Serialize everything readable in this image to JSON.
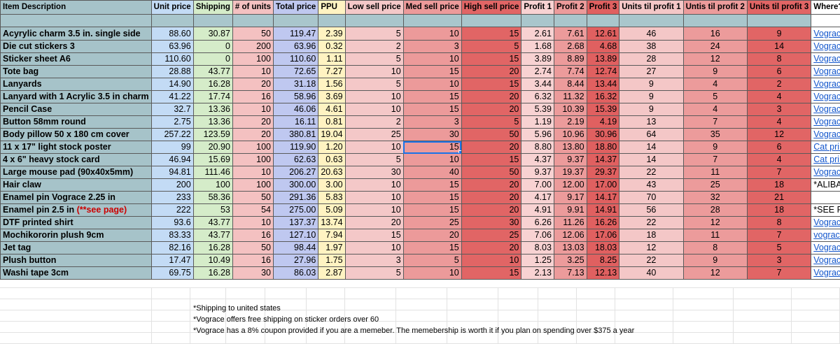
{
  "headers": [
    "Item Description",
    "Unit price",
    "Shipping",
    "# of units",
    "Total price",
    "PPU",
    "Low sell price",
    "Med sell price",
    "High sell price",
    "Profit 1",
    "Profit 2",
    "Profit 3",
    "Units til profit 1",
    "Untis til profit 2",
    "Units til profit 3",
    "Where?"
  ],
  "rows": [
    [
      "Acyrylic charm 3.5 in. single side",
      "88.60",
      "30.87",
      "50",
      "119.47",
      "2.39",
      "5",
      "10",
      "15",
      "2.61",
      "7.61",
      "12.61",
      "46",
      "16",
      "9",
      "Vograce"
    ],
    [
      "Die cut stickers 3",
      "63.96",
      "0",
      "200",
      "63.96",
      "0.32",
      "2",
      "3",
      "5",
      "1.68",
      "2.68",
      "4.68",
      "38",
      "24",
      "14",
      "Vograce"
    ],
    [
      "Sticker sheet A6",
      "110.60",
      "0",
      "100",
      "110.60",
      "1.11",
      "5",
      "10",
      "15",
      "3.89",
      "8.89",
      "13.89",
      "28",
      "12",
      "8",
      "Vograce"
    ],
    [
      "Tote bag",
      "28.88",
      "43.77",
      "10",
      "72.65",
      "7.27",
      "10",
      "15",
      "20",
      "2.74",
      "7.74",
      "12.74",
      "27",
      "9",
      "6",
      "Vograce"
    ],
    [
      "Lanyards",
      "14.90",
      "16.28",
      "20",
      "31.18",
      "1.56",
      "5",
      "10",
      "15",
      "3.44",
      "8.44",
      "13.44",
      "9",
      "4",
      "2",
      "Vograce"
    ],
    [
      "Lanyard with 1 Acrylic 3.5 in charm",
      "41.22",
      "17.74",
      "16",
      "58.96",
      "3.69",
      "10",
      "15",
      "20",
      "6.32",
      "11.32",
      "16.32",
      "9",
      "5",
      "4",
      "Vograce"
    ],
    [
      "Pencil Case",
      "32.7",
      "13.36",
      "10",
      "46.06",
      "4.61",
      "10",
      "15",
      "20",
      "5.39",
      "10.39",
      "15.39",
      "9",
      "4",
      "3",
      "Vograce"
    ],
    [
      "Button 58mm round",
      "2.75",
      "13.36",
      "20",
      "16.11",
      "0.81",
      "2",
      "3",
      "5",
      "1.19",
      "2.19",
      "4.19",
      "13",
      "7",
      "4",
      "Vograce"
    ],
    [
      "Body pillow 50 x 180 cm cover",
      "257.22",
      "123.59",
      "20",
      "380.81",
      "19.04",
      "25",
      "30",
      "50",
      "5.96",
      "10.96",
      "30.96",
      "64",
      "35",
      "12",
      "Vograce"
    ],
    [
      "11 x 17\" light stock poster",
      "99",
      "20.90",
      "100",
      "119.90",
      "1.20",
      "10",
      "15",
      "20",
      "8.80",
      "13.80",
      "18.80",
      "14",
      "9",
      "6",
      "Cat print"
    ],
    [
      "4 x 6\" heavy stock card",
      "46.94",
      "15.69",
      "100",
      "62.63",
      "0.63",
      "5",
      "10",
      "15",
      "4.37",
      "9.37",
      "14.37",
      "14",
      "7",
      "4",
      "Cat print"
    ],
    [
      "Large mouse pad (90x40x5mm)",
      "94.81",
      "111.46",
      "10",
      "206.27",
      "20.63",
      "30",
      "40",
      "50",
      "9.37",
      "19.37",
      "29.37",
      "22",
      "11",
      "7",
      "Vograce"
    ],
    [
      "Hair claw",
      "200",
      "100",
      "100",
      "300.00",
      "3.00",
      "10",
      "15",
      "20",
      "7.00",
      "12.00",
      "17.00",
      "43",
      "25",
      "18",
      "*ALIBABA"
    ],
    [
      "Enamel pin Vograce 2.25 in",
      "233",
      "58.36",
      "50",
      "291.36",
      "5.83",
      "10",
      "15",
      "20",
      "4.17",
      "9.17",
      "14.17",
      "70",
      "32",
      "21",
      ""
    ],
    [
      "Enamel pin 2.5 in ",
      "222",
      "53",
      "54",
      "275.00",
      "5.09",
      "10",
      "15",
      "20",
      "4.91",
      "9.91",
      "14.91",
      "56",
      "28",
      "18",
      "*SEE PAGE"
    ],
    [
      "DTF printed shirt",
      "93.6",
      "43.77",
      "10",
      "137.37",
      "13.74",
      "20",
      "25",
      "30",
      "6.26",
      "11.26",
      "16.26",
      "22",
      "12",
      "8",
      "Vograce"
    ],
    [
      "Mochikororin plush 9cm",
      "83.33",
      "43.77",
      "16",
      "127.10",
      "7.94",
      "15",
      "20",
      "25",
      "7.06",
      "12.06",
      "17.06",
      "18",
      "11",
      "7",
      "vograce"
    ],
    [
      "Jet tag",
      "82.16",
      "16.28",
      "50",
      "98.44",
      "1.97",
      "10",
      "15",
      "20",
      "8.03",
      "13.03",
      "18.03",
      "12",
      "8",
      "5",
      "Vograce"
    ],
    [
      "Plush button",
      "17.47",
      "10.49",
      "16",
      "27.96",
      "1.75",
      "3",
      "5",
      "10",
      "1.25",
      "3.25",
      "8.25",
      "22",
      "9",
      "3",
      "Vograce"
    ],
    [
      "Washi tape 3cm",
      "69.75",
      "16.28",
      "30",
      "86.03",
      "2.87",
      "5",
      "10",
      "15",
      "2.13",
      "7.13",
      "12.13",
      "40",
      "12",
      "7",
      "Vograce"
    ]
  ],
  "enamel_note": "(**see page)",
  "footnotes": [
    "*Shipping to united states",
    "*Vograce offers free shipping on sticker orders over 60",
    "*Vograce has a 8% coupon provided if you are a memeber. The memebership is worth it if you plan on spending over $375 a year"
  ],
  "colors": {
    "description": "#a6c3c9",
    "unit_price": "#c3dbf5",
    "shipping": "#d5ecc9",
    "units": "#f4c1c1",
    "total": "#bfc8f0",
    "ppu": "#fff3c2",
    "high_red": "#e16565",
    "link": "#1155cc",
    "selection": "#1a73e8"
  }
}
